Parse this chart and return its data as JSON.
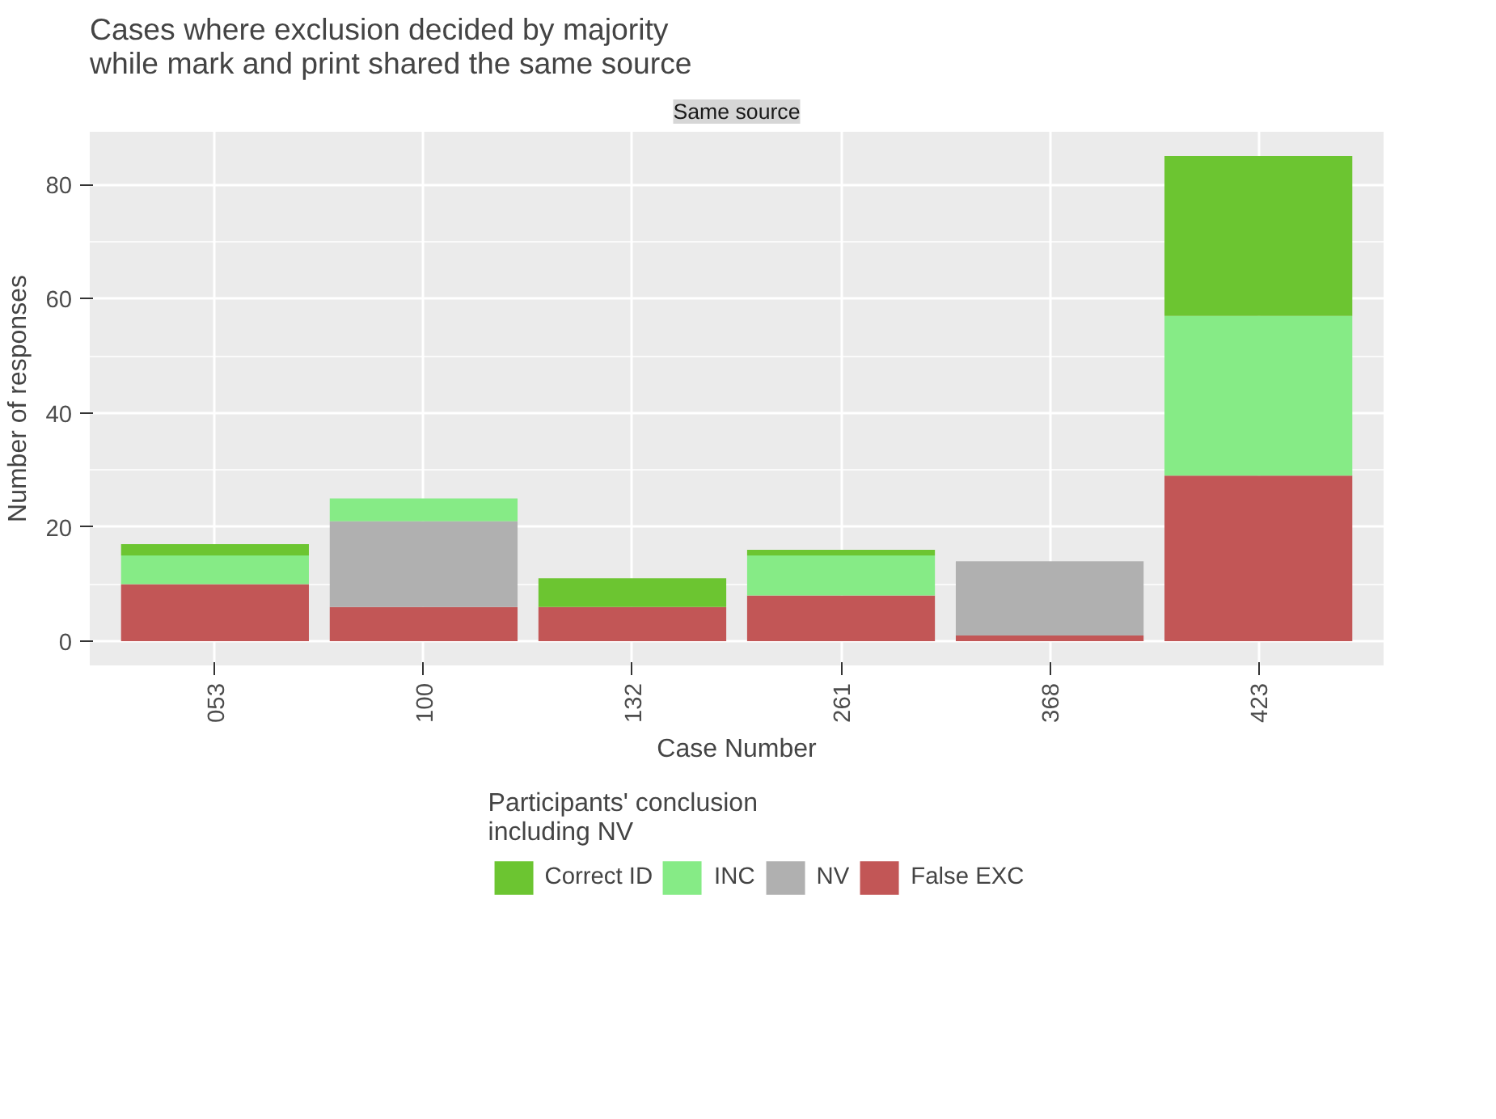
{
  "chart_data": {
    "type": "bar",
    "stacked": true,
    "title": "Cases where exclusion decided by majority\nwhile mark and print shared the same source",
    "subtitle": "Same source",
    "xlabel": "Case Number",
    "ylabel": "Number of responses",
    "legend_title": "Participants' conclusion\nincluding NV",
    "categories": [
      "053",
      "100",
      "132",
      "261",
      "368",
      "423"
    ],
    "series": [
      {
        "name": "False EXC",
        "color": "#c25656",
        "values": [
          10,
          6,
          6,
          8,
          1,
          29
        ]
      },
      {
        "name": "NV",
        "color": "#b0b0b0",
        "values": [
          0,
          15,
          0,
          0,
          13,
          0
        ]
      },
      {
        "name": "INC",
        "color": "#86eb86",
        "values": [
          5,
          4,
          0,
          7,
          0,
          28
        ]
      },
      {
        "name": "Correct ID",
        "color": "#6cc531",
        "values": [
          2,
          0,
          5,
          1,
          0,
          28
        ]
      }
    ],
    "ylim": [
      -4.25,
      89.25
    ],
    "yticks": [
      0,
      20,
      40,
      60,
      80
    ],
    "grid": true,
    "legend": "bottom"
  }
}
